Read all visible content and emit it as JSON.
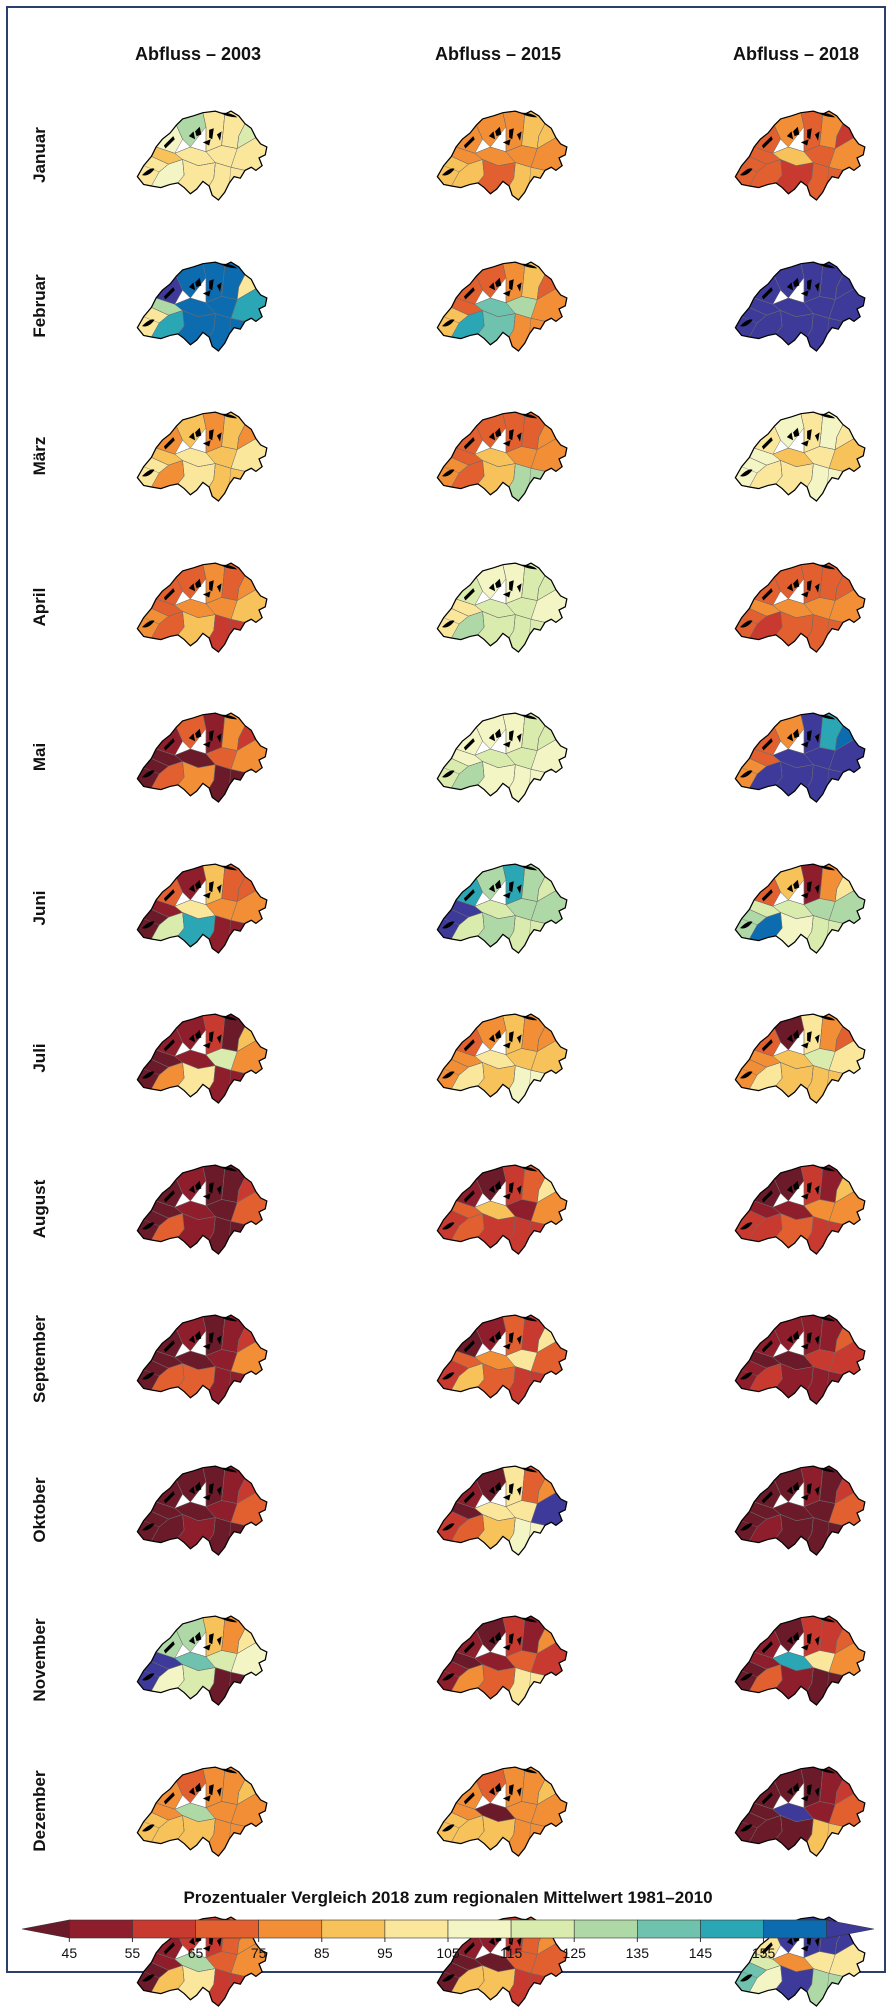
{
  "columns": [
    "Abfluss – 2003",
    "Abfluss – 2015",
    "Abfluss – 2018"
  ],
  "months": [
    "Januar",
    "Februar",
    "März",
    "April",
    "Mai",
    "Juni",
    "Juli",
    "August",
    "September",
    "Oktober",
    "November",
    "Dezember"
  ],
  "legend": {
    "title": "Prozentualer Vergleich 2018 zum regionalen Mittelwert 1981–2010",
    "ticks": [
      "45",
      "55",
      "65",
      "75",
      "85",
      "95",
      "105",
      "115",
      "125",
      "135",
      "145",
      "155"
    ],
    "colors": [
      "#6b1a2a",
      "#8e1e2c",
      "#c8392f",
      "#e2602f",
      "#f28f36",
      "#f7c25a",
      "#fbe79b",
      "#f4f5c4",
      "#d9ecad",
      "#aed8a6",
      "#6fc2ad",
      "#2aa6b4",
      "#0d6cb0",
      "#3d3a9a"
    ]
  },
  "maps": [
    [
      [
        6,
        5,
        7,
        9,
        6,
        6,
        8,
        6,
        6,
        6,
        7,
        6,
        6
      ],
      [
        5,
        4,
        4,
        4,
        4,
        5,
        5,
        4,
        4,
        4,
        5,
        3,
        5
      ],
      [
        3,
        3,
        3,
        4,
        3,
        4,
        2,
        4,
        5,
        3,
        3,
        2,
        3
      ]
    ],
    [
      [
        6,
        9,
        13,
        12,
        12,
        12,
        6,
        11,
        12,
        12,
        11,
        12,
        12
      ],
      [
        5,
        3,
        3,
        3,
        4,
        5,
        3,
        4,
        10,
        9,
        11,
        10,
        4
      ],
      [
        13,
        13,
        13,
        13,
        13,
        13,
        13,
        13,
        13,
        13,
        13,
        13,
        13
      ]
    ],
    [
      [
        6,
        5,
        4,
        5,
        4,
        5,
        4,
        6,
        6,
        5,
        4,
        6,
        5
      ],
      [
        4,
        3,
        3,
        3,
        3,
        3,
        4,
        4,
        5,
        4,
        3,
        5,
        9
      ],
      [
        7,
        7,
        6,
        7,
        6,
        7,
        6,
        5,
        5,
        6,
        6,
        6,
        7
      ]
    ],
    [
      [
        4,
        3,
        3,
        3,
        4,
        3,
        4,
        5,
        4,
        4,
        3,
        5,
        2
      ],
      [
        6,
        6,
        8,
        7,
        7,
        8,
        8,
        7,
        8,
        8,
        9,
        8,
        8
      ],
      [
        3,
        4,
        3,
        3,
        3,
        3,
        3,
        4,
        4,
        4,
        2,
        3,
        3
      ]
    ],
    [
      [
        0,
        0,
        1,
        3,
        1,
        4,
        2,
        4,
        0,
        3,
        3,
        4,
        0
      ],
      [
        8,
        7,
        7,
        7,
        7,
        8,
        8,
        7,
        8,
        8,
        9,
        7,
        7
      ],
      [
        4,
        3,
        3,
        4,
        13,
        11,
        12,
        13,
        13,
        13,
        13,
        13,
        13
      ]
    ],
    [
      [
        0,
        1,
        3,
        1,
        5,
        3,
        3,
        4,
        6,
        4,
        8,
        11,
        1
      ],
      [
        13,
        13,
        11,
        9,
        11,
        9,
        8,
        9,
        8,
        9,
        8,
        9,
        8
      ],
      [
        9,
        8,
        3,
        5,
        1,
        4,
        6,
        9,
        8,
        9,
        12,
        7,
        8
      ]
    ],
    [
      [
        0,
        0,
        1,
        1,
        2,
        0,
        5,
        4,
        1,
        8,
        4,
        6,
        1
      ],
      [
        4,
        4,
        3,
        4,
        5,
        4,
        4,
        5,
        6,
        5,
        6,
        5,
        7
      ],
      [
        4,
        4,
        3,
        0,
        6,
        4,
        3,
        6,
        5,
        8,
        6,
        5,
        5
      ]
    ],
    [
      [
        0,
        0,
        0,
        1,
        0,
        0,
        2,
        3,
        1,
        0,
        3,
        1,
        0
      ],
      [
        2,
        3,
        1,
        0,
        2,
        3,
        6,
        4,
        5,
        1,
        3,
        2,
        2
      ],
      [
        2,
        1,
        0,
        0,
        2,
        1,
        5,
        4,
        1,
        4,
        2,
        3,
        2
      ]
    ],
    [
      [
        0,
        0,
        0,
        1,
        0,
        1,
        2,
        4,
        0,
        1,
        3,
        3,
        1
      ],
      [
        2,
        3,
        0,
        1,
        3,
        2,
        6,
        3,
        4,
        6,
        5,
        3,
        2
      ],
      [
        1,
        0,
        1,
        1,
        1,
        1,
        3,
        2,
        0,
        2,
        2,
        1,
        1
      ]
    ],
    [
      [
        0,
        0,
        0,
        0,
        0,
        1,
        2,
        3,
        0,
        1,
        0,
        1,
        0
      ],
      [
        2,
        0,
        1,
        0,
        6,
        3,
        4,
        13,
        6,
        6,
        3,
        5,
        7
      ],
      [
        0,
        0,
        0,
        0,
        1,
        0,
        2,
        3,
        0,
        0,
        1,
        0,
        0
      ]
    ],
    [
      [
        13,
        13,
        9,
        9,
        5,
        4,
        6,
        7,
        10,
        8,
        7,
        8,
        0
      ],
      [
        1,
        0,
        1,
        0,
        2,
        1,
        4,
        2,
        1,
        3,
        4,
        3,
        6
      ],
      [
        0,
        1,
        1,
        0,
        2,
        2,
        3,
        4,
        11,
        6,
        3,
        1,
        0
      ]
    ],
    [
      [
        5,
        4,
        4,
        3,
        4,
        4,
        5,
        4,
        9,
        4,
        5,
        5,
        4
      ],
      [
        5,
        4,
        4,
        3,
        4,
        4,
        5,
        4,
        0,
        4,
        5,
        5,
        4
      ],
      [
        0,
        0,
        0,
        0,
        0,
        1,
        2,
        3,
        13,
        1,
        0,
        0,
        5
      ]
    ],
    [
      [
        0,
        1,
        1,
        2,
        2,
        3,
        4,
        4,
        9,
        3,
        5,
        6,
        2
      ],
      [
        0,
        0,
        1,
        1,
        2,
        3,
        4,
        3,
        0,
        3,
        5,
        5,
        2
      ],
      [
        10,
        8,
        6,
        13,
        13,
        13,
        13,
        6,
        4,
        6,
        7,
        13,
        9
      ]
    ]
  ]
}
